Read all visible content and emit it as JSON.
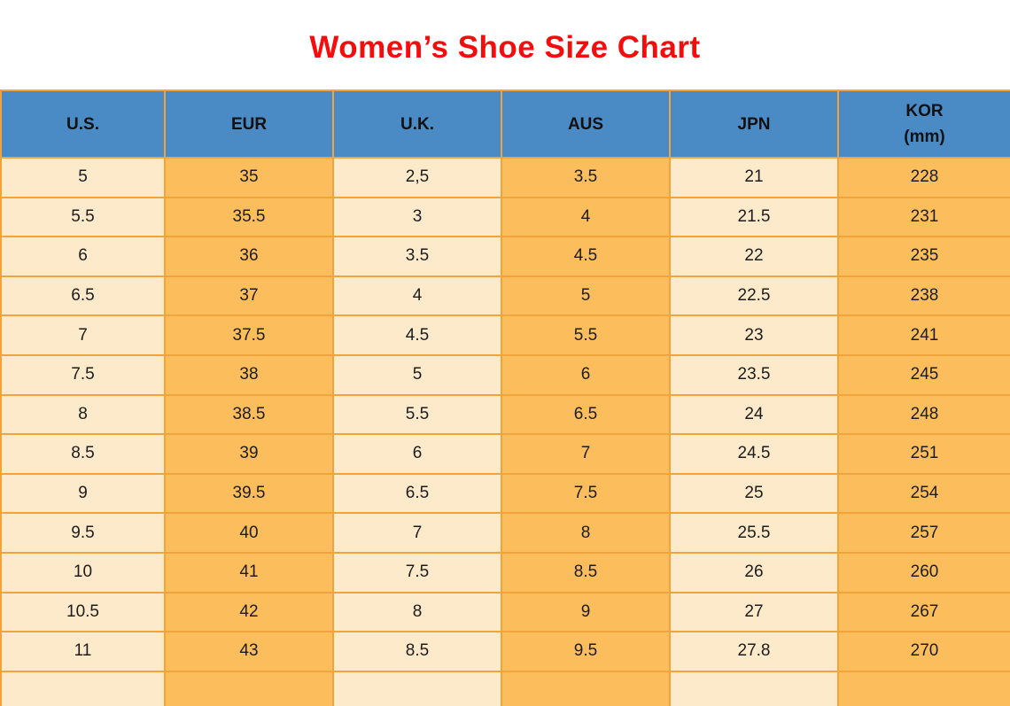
{
  "title": {
    "text": "Women’s Shoe Size Chart"
  },
  "colors": {
    "title": "#f50d0d",
    "header_bg": "#4a8ac5",
    "header_text": "#111111",
    "cell_light": "#fdeacb",
    "cell_accent": "#fcbe5d",
    "border": "#f1a43b",
    "cell_text": "#1c1c1c"
  },
  "table": {
    "columns": [
      {
        "key": "us",
        "label": "U.S."
      },
      {
        "key": "eur",
        "label": "EUR"
      },
      {
        "key": "uk",
        "label": "U.K."
      },
      {
        "key": "aus",
        "label": "AUS"
      },
      {
        "key": "jpn",
        "label": "JPN"
      },
      {
        "key": "kor",
        "label": "KOR",
        "sub": "(mm)"
      }
    ]
  },
  "chart_data": {
    "type": "table",
    "title": "Women’s Shoe Size Chart",
    "columns": [
      "U.S.",
      "EUR",
      "U.K.",
      "AUS",
      "JPN",
      "KOR (mm)"
    ],
    "rows": [
      [
        "5",
        "35",
        "2,5",
        "3.5",
        "21",
        "228"
      ],
      [
        "5.5",
        "35.5",
        "3",
        "4",
        "21.5",
        "231"
      ],
      [
        "6",
        "36",
        "3.5",
        "4.5",
        "22",
        "235"
      ],
      [
        "6.5",
        "37",
        "4",
        "5",
        "22.5",
        "238"
      ],
      [
        "7",
        "37.5",
        "4.5",
        "5.5",
        "23",
        "241"
      ],
      [
        "7.5",
        "38",
        "5",
        "6",
        "23.5",
        "245"
      ],
      [
        "8",
        "38.5",
        "5.5",
        "6.5",
        "24",
        "248"
      ],
      [
        "8.5",
        "39",
        "6",
        "7",
        "24.5",
        "251"
      ],
      [
        "9",
        "39.5",
        "6.5",
        "7.5",
        "25",
        "254"
      ],
      [
        "9.5",
        "40",
        "7",
        "8",
        "25.5",
        "257"
      ],
      [
        "10",
        "41",
        "7.5",
        "8.5",
        "26",
        "260"
      ],
      [
        "10.5",
        "42",
        "8",
        "9",
        "27",
        "267"
      ],
      [
        "11",
        "43",
        "8.5",
        "9.5",
        "27.8",
        "270"
      ]
    ]
  }
}
